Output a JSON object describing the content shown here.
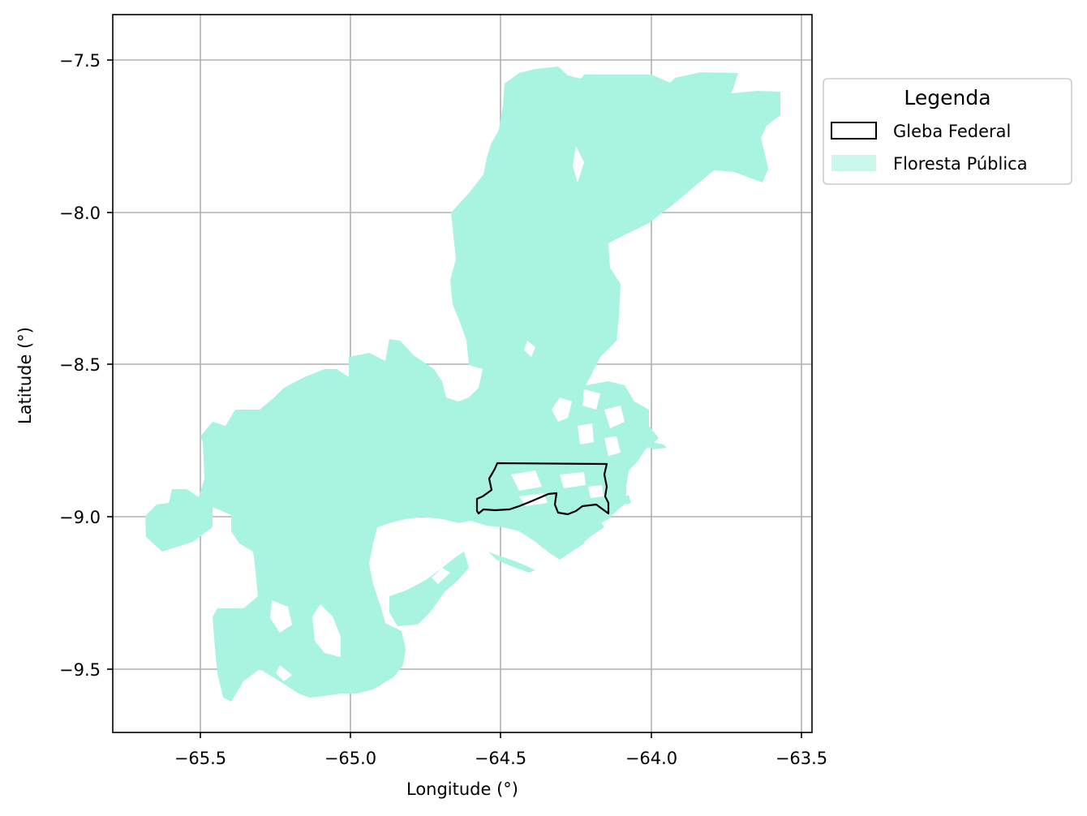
{
  "map": {
    "xlabel": "Longitude (°)",
    "ylabel": "Latitude (°)",
    "xlim": [
      -65.79,
      -63.47
    ],
    "ylim": [
      -9.72,
      -7.35
    ],
    "x_ticks": [
      {
        "value": -65.5,
        "label": "−65.5"
      },
      {
        "value": -65.0,
        "label": "−65.0"
      },
      {
        "value": -64.5,
        "label": "−64.5"
      },
      {
        "value": -64.0,
        "label": "−64.0"
      },
      {
        "value": -63.5,
        "label": "−63.5"
      }
    ],
    "y_ticks": [
      {
        "value": -7.5,
        "label": "−7.5"
      },
      {
        "value": -8.0,
        "label": "−8.0"
      },
      {
        "value": -8.5,
        "label": "−8.5"
      },
      {
        "value": -9.0,
        "label": "−9.0"
      },
      {
        "value": -9.5,
        "label": "−9.5"
      }
    ],
    "grid": true,
    "legend": {
      "title": "Legenda",
      "placement": "outside-upper-right",
      "entries": [
        {
          "label": "Gleba Federal",
          "style": "outline",
          "color": "#000000"
        },
        {
          "label": "Floresta Pública",
          "style": "fill",
          "color": "#a9f4e0"
        }
      ]
    },
    "colors": {
      "forest": "#a9f4e0",
      "gleba_outline": "#000000",
      "grid": "#b0b0b0"
    }
  }
}
